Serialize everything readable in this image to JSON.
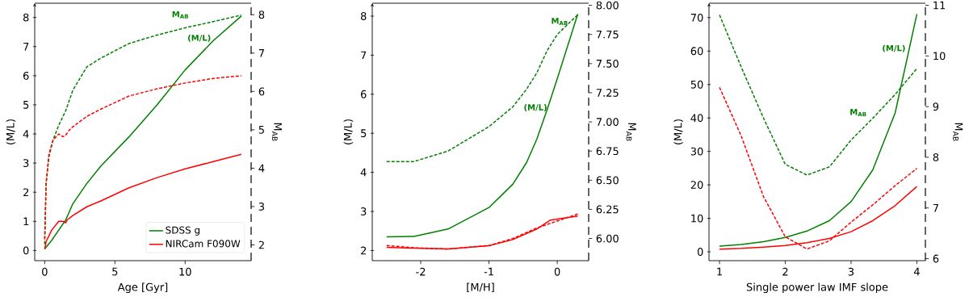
{
  "chart_data": [
    {
      "type": "line",
      "xlabel": "Age [Gyr]",
      "ylabel": "(M/L)",
      "y2label": "M$_{AB}$",
      "legend": "bottom right",
      "xlim": [
        -0.71,
        14.7
      ],
      "ylim": [
        -0.35,
        8.49
      ],
      "y2lim": [
        1.59,
        8.3
      ],
      "xticks": [
        0,
        5,
        10
      ],
      "yticks": [
        0,
        1,
        2,
        3,
        4,
        5,
        6,
        7,
        8
      ],
      "y2ticks": [
        2,
        3,
        4,
        5,
        6,
        7,
        8
      ],
      "series": [
        {
          "name": "SDSS g",
          "color": "#008000",
          "line_style": "solid",
          "x": [
            0,
            0.5,
            1,
            1.5,
            2,
            3,
            4,
            6,
            8,
            10,
            12,
            14
          ],
          "values": [
            0.05,
            0.35,
            0.7,
            1.05,
            1.6,
            2.3,
            2.9,
            3.9,
            5.0,
            6.2,
            7.2,
            8.05
          ]
        },
        {
          "name": "NIRCam F090W",
          "color": "#ff0000",
          "line_style": "solid",
          "x": [
            0,
            0.1,
            0.5,
            1,
            1.3,
            1.5,
            1.6,
            2,
            3,
            4,
            6,
            8,
            10,
            12,
            14
          ],
          "values": [
            0.05,
            0.3,
            0.7,
            1.0,
            1.0,
            0.95,
            1.05,
            1.2,
            1.5,
            1.7,
            2.15,
            2.5,
            2.8,
            3.05,
            3.3
          ]
        },
        {
          "color": "#008000",
          "line_style": "dashed",
          "axis": "y2",
          "x": [
            0,
            0.1,
            0.3,
            0.6,
            1,
            1.5,
            2,
            3,
            4,
            6,
            8,
            10,
            12,
            14
          ],
          "values": [
            2.02,
            3.6,
            4.29,
            4.74,
            5.12,
            5.5,
            6.03,
            6.64,
            6.87,
            7.25,
            7.47,
            7.66,
            7.82,
            7.99
          ]
        },
        {
          "color": "#ff0000",
          "line_style": "dashed",
          "axis": "y2",
          "x": [
            0,
            0.1,
            0.3,
            0.6,
            1,
            1.3,
            1.5,
            1.7,
            2,
            3,
            4,
            6,
            8,
            10,
            12,
            14
          ],
          "values": [
            2.15,
            3.6,
            4.36,
            4.74,
            4.89,
            4.82,
            4.86,
            4.97,
            5.08,
            5.35,
            5.54,
            5.88,
            6.07,
            6.22,
            6.34,
            6.41
          ]
        }
      ],
      "annotations": [
        "M$_{AB}$",
        "(M/L)"
      ]
    },
    {
      "type": "line",
      "xlabel": "[M/H]",
      "ylabel": "(M/L)",
      "y2label": "M$_{AB}$",
      "xlim": [
        -2.71,
        0.46
      ],
      "ylim": [
        1.74,
        8.33
      ],
      "y2lim": [
        5.81,
        8.018
      ],
      "xticks": [
        -2,
        -1,
        0
      ],
      "yticks": [
        2,
        3,
        4,
        5,
        6,
        7,
        8
      ],
      "y2ticks": [
        {
          "value": 6,
          "label": "6.00"
        },
        {
          "value": 6.25,
          "label": "6.25"
        },
        {
          "value": 6.5,
          "label": "6.50"
        },
        {
          "value": 6.75,
          "label": "6.75"
        },
        {
          "value": 7,
          "label": "7.00"
        },
        {
          "value": 7.25,
          "label": "7.25"
        },
        {
          "value": 7.5,
          "label": "7.50"
        },
        {
          "value": 7.75,
          "label": "7.75"
        },
        {
          "value": 8,
          "label": "8.00"
        }
      ],
      "series": [
        {
          "color": "#008000",
          "line_style": "solid",
          "x": [
            -2.5,
            -2.1,
            -1.6,
            -1.0,
            -0.65,
            -0.45,
            -0.3,
            -0.15,
            0,
            0.3
          ],
          "values": [
            2.35,
            2.36,
            2.55,
            3.1,
            3.7,
            4.25,
            4.85,
            5.6,
            6.4,
            8.05
          ]
        },
        {
          "color": "#ff0000",
          "line_style": "solid",
          "x": [
            -2.5,
            -2.1,
            -1.6,
            -1.0,
            -0.65,
            -0.3,
            -0.1,
            0.3
          ],
          "values": [
            2.08,
            2.06,
            2.04,
            2.12,
            2.28,
            2.55,
            2.78,
            2.88
          ]
        },
        {
          "color": "#008000",
          "line_style": "dashed",
          "axis": "y2",
          "x": [
            -2.5,
            -2.1,
            -1.6,
            -1.0,
            -0.65,
            -0.45,
            -0.3,
            -0.15,
            0,
            0.3
          ],
          "values": [
            6.66,
            6.66,
            6.75,
            6.96,
            7.13,
            7.28,
            7.42,
            7.61,
            7.75,
            7.92
          ]
        },
        {
          "color": "#ff0000",
          "line_style": "dashed",
          "axis": "y2",
          "x": [
            -2.5,
            -2.1,
            -1.6,
            -1.0,
            -0.65,
            -0.3,
            -0.1,
            0.3
          ],
          "values": [
            5.94,
            5.92,
            5.91,
            5.94,
            6.0,
            6.09,
            6.13,
            6.21
          ]
        }
      ],
      "annotations": [
        "M$_{AB}$",
        "(M/L)"
      ]
    },
    {
      "type": "line",
      "xlabel": "Single power law IMF slope",
      "ylabel": "(M/L)",
      "y2label": "M$_{AB}$",
      "xlim": [
        0.84,
        4.13
      ],
      "ylim": [
        -2.65,
        74.3
      ],
      "y2lim": [
        5.96,
        11.04
      ],
      "xticks": [
        1,
        2,
        3,
        4
      ],
      "yticks": [
        0,
        10,
        20,
        30,
        40,
        50,
        60,
        70
      ],
      "y2ticks": [
        6,
        7,
        8,
        9,
        10,
        11
      ],
      "series": [
        {
          "color": "#008000",
          "line_style": "solid",
          "x": [
            1,
            1.33,
            1.67,
            2,
            2.33,
            2.67,
            3,
            3.33,
            3.67,
            4
          ],
          "values": [
            1.7,
            2.2,
            3,
            4.3,
            6.2,
            9.3,
            15,
            24.5,
            41.5,
            71
          ]
        },
        {
          "color": "#ff0000",
          "line_style": "solid",
          "x": [
            1,
            1.33,
            1.67,
            2,
            2.33,
            2.67,
            3,
            3.33,
            3.67,
            4
          ],
          "values": [
            0.8,
            1.0,
            1.4,
            1.9,
            2.7,
            4.0,
            6.0,
            9.3,
            13.8,
            19.5
          ]
        },
        {
          "color": "#008000",
          "line_style": "dashed",
          "axis": "y2",
          "x": [
            1,
            1.33,
            1.67,
            2,
            2.33,
            2.67,
            3,
            3.33,
            3.67,
            4
          ],
          "values": [
            10.81,
            9.78,
            8.77,
            7.86,
            7.65,
            7.81,
            8.34,
            8.77,
            9.24,
            9.75
          ]
        },
        {
          "color": "#ff0000",
          "line_style": "dashed",
          "axis": "y2",
          "x": [
            1,
            1.33,
            1.67,
            2,
            2.33,
            2.67,
            3,
            3.33,
            3.67,
            4
          ],
          "values": [
            9.38,
            8.42,
            7.22,
            6.43,
            6.19,
            6.35,
            6.72,
            7.06,
            7.44,
            7.78
          ]
        }
      ],
      "annotations": [
        "(M/L)",
        "M$_{AB}$"
      ]
    }
  ]
}
